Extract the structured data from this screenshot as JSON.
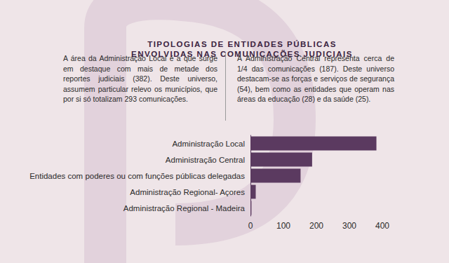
{
  "chart_data": {
    "type": "bar",
    "title": "TIPOLOGIAS DE ENTIDADES PÚBLICAS\nENVOLVIDAS NAS COMUNICAÇÕES JUDICIAIS",
    "annotations": [
      "A área da Administração Local é a que surge em destaque com  mais de metade dos reportes judiciais (382). Deste universo, assumem particular relevo os municípios, que por si só totalizam 293 comunicações.",
      "A Administração Central representa cerca de 1/4 das comunicações (187). Deste universo destacam-se as forças e serviços de segurança (54), bem como as entidades que operam nas áreas da educação (28) e da saúde (25)."
    ],
    "categories": [
      "Administração Local",
      "Administração Central",
      "Entidades com poderes ou com funções públicas delegadas",
      "Administração Regional- Açores",
      "Administração Regional - Madeira"
    ],
    "values": [
      382,
      187,
      152,
      16,
      3
    ],
    "color": "#5b3a60",
    "orientation": "horizontal",
    "xlim": [
      0,
      400
    ],
    "xticks": [
      0,
      100,
      200,
      300,
      400
    ],
    "grid": false
  }
}
